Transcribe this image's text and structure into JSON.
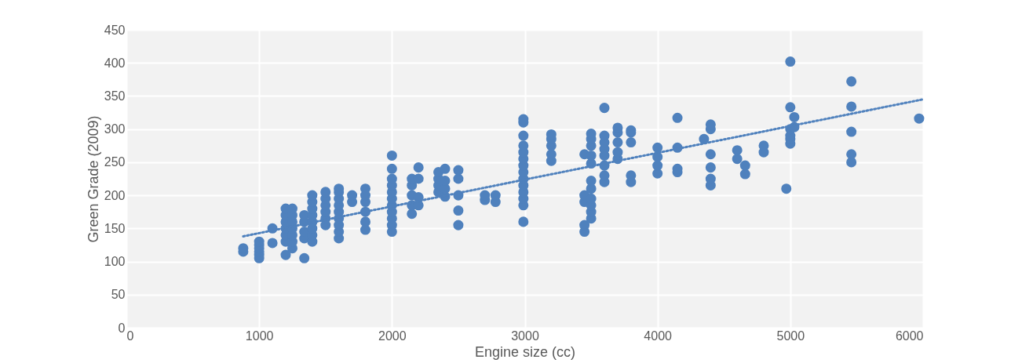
{
  "chart_data": {
    "type": "scatter",
    "xlabel": "Engine size (cc)",
    "ylabel": "Green Grade (2009)",
    "xlim": [
      0,
      6000
    ],
    "xticks": [
      0,
      1000,
      2000,
      3000,
      4000,
      5000,
      6000
    ],
    "ylim": [
      0,
      450
    ],
    "yticks": [
      0,
      50,
      100,
      150,
      200,
      250,
      300,
      350,
      400,
      450
    ],
    "grid": true,
    "marker": "circle",
    "series": [
      {
        "color": "#4f81bd",
        "x": [
          880,
          880,
          1000,
          1000,
          1000,
          1000,
          1000,
          1000,
          1100,
          1100,
          1200,
          1200,
          1200,
          1200,
          1200,
          1200,
          1200,
          1250,
          1250,
          1250,
          1250,
          1250,
          1250,
          1250,
          1340,
          1340,
          1340,
          1340,
          1340,
          1400,
          1400,
          1400,
          1400,
          1400,
          1400,
          1400,
          1400,
          1500,
          1500,
          1500,
          1500,
          1500,
          1500,
          1600,
          1600,
          1600,
          1600,
          1600,
          1600,
          1600,
          1600,
          1600,
          1700,
          1700,
          1800,
          1800,
          1800,
          1800,
          1800,
          1800,
          2000,
          2000,
          2000,
          2000,
          2000,
          2000,
          2000,
          2000,
          2000,
          2000,
          2000,
          2150,
          2150,
          2150,
          2150,
          2150,
          2200,
          2200,
          2200,
          2200,
          2350,
          2350,
          2350,
          2350,
          2400,
          2400,
          2400,
          2400,
          2500,
          2500,
          2500,
          2500,
          2500,
          2700,
          2700,
          2780,
          2780,
          2990,
          2990,
          2990,
          2990,
          2990,
          2990,
          2990,
          2990,
          2990,
          2990,
          2990,
          2990,
          2990,
          2990,
          3200,
          3200,
          3200,
          3200,
          3200,
          3450,
          3450,
          3450,
          3450,
          3450,
          3500,
          3500,
          3500,
          3500,
          3500,
          3500,
          3500,
          3500,
          3500,
          3500,
          3500,
          3600,
          3600,
          3600,
          3600,
          3600,
          3600,
          3600,
          3600,
          3700,
          3700,
          3700,
          3700,
          3700,
          3800,
          3800,
          3800,
          3800,
          3800,
          4000,
          4000,
          4000,
          4000,
          4150,
          4150,
          4150,
          4150,
          4350,
          4400,
          4400,
          4400,
          4400,
          4400,
          4400,
          4600,
          4600,
          4660,
          4660,
          4800,
          4800,
          4970,
          5000,
          5000,
          5000,
          5000,
          5000,
          5000,
          5030,
          5030,
          5460,
          5460,
          5460,
          5460,
          5460,
          5970
        ],
        "values": [
          115,
          120,
          105,
          110,
          115,
          120,
          125,
          130,
          150,
          128,
          110,
          130,
          140,
          150,
          160,
          170,
          180,
          120,
          130,
          140,
          150,
          160,
          170,
          180,
          105,
          135,
          145,
          160,
          170,
          130,
          140,
          150,
          160,
          170,
          180,
          190,
          200,
          155,
          165,
          175,
          185,
          195,
          205,
          135,
          145,
          155,
          165,
          175,
          185,
          195,
          205,
          210,
          190,
          200,
          148,
          160,
          175,
          190,
          200,
          210,
          145,
          155,
          165,
          175,
          185,
          195,
          205,
          215,
          225,
          240,
          260,
          172,
          185,
          200,
          215,
          225,
          185,
          197,
          225,
          242,
          205,
          215,
          225,
          235,
          198,
          210,
          222,
          240,
          155,
          177,
          200,
          225,
          238,
          193,
          200,
          190,
          200,
          160,
          185,
          195,
          205,
          215,
          225,
          235,
          245,
          255,
          265,
          275,
          290,
          310,
          315,
          252,
          262,
          275,
          285,
          292,
          145,
          155,
          190,
          200,
          262,
          165,
          175,
          185,
          195,
          210,
          222,
          248,
          260,
          275,
          285,
          293,
          220,
          230,
          245,
          260,
          270,
          280,
          290,
          332,
          255,
          265,
          280,
          295,
          302,
          220,
          230,
          280,
          295,
          298,
          233,
          245,
          258,
          272,
          235,
          240,
          272,
          317,
          285,
          215,
          225,
          242,
          262,
          300,
          307,
          255,
          268,
          232,
          245,
          265,
          275,
          210,
          278,
          285,
          290,
          300,
          333,
          402,
          303,
          318,
          250,
          262,
          296,
          334,
          372,
          316
        ]
      },
      {
        "type": "line",
        "color": "#4f81bd",
        "line_style": "dotted",
        "marker": "none",
        "x": [
          880,
          6000
        ],
        "values": [
          138,
          345
        ]
      }
    ]
  }
}
